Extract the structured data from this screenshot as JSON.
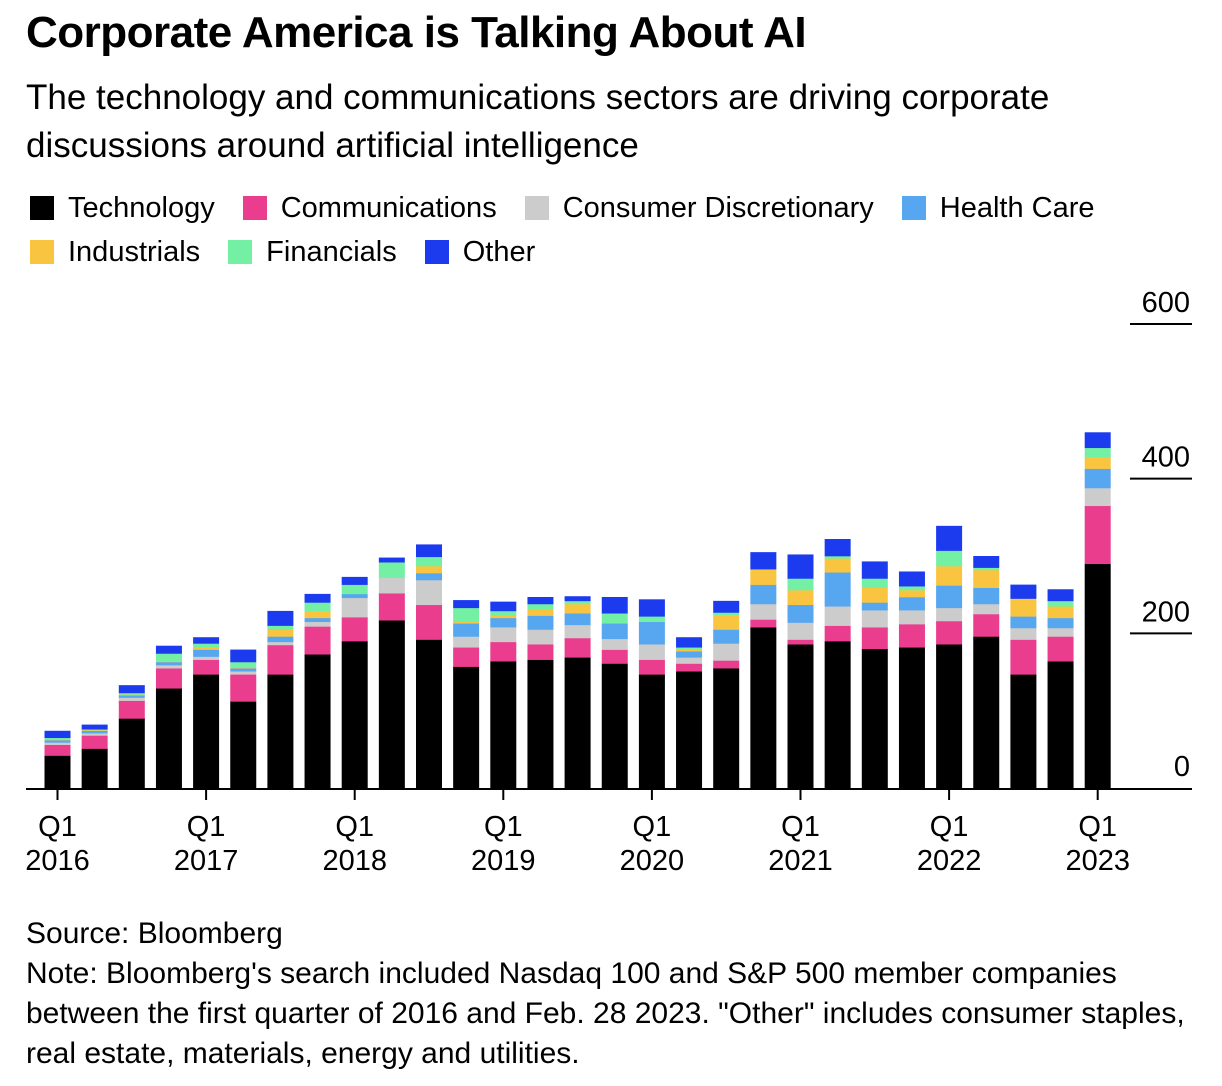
{
  "title": "Corporate America is Talking About AI",
  "subtitle": "The technology and communications sectors are driving corporate discussions around artificial intelligence",
  "source": "Source: Bloomberg",
  "note": "Note: Bloomberg's search included Nasdaq 100 and S&P 500 member companies between the first quarter of 2016 and Feb. 28 2023. \"Other\" includes consumer staples, real estate, materials, energy and utilities.",
  "chart_data": {
    "type": "bar",
    "stacked": true,
    "categories": [
      "Q1 2016",
      "Q2 2016",
      "Q3 2016",
      "Q4 2016",
      "Q1 2017",
      "Q2 2017",
      "Q3 2017",
      "Q4 2017",
      "Q1 2018",
      "Q2 2018",
      "Q3 2018",
      "Q4 2018",
      "Q1 2019",
      "Q2 2019",
      "Q3 2019",
      "Q4 2019",
      "Q1 2020",
      "Q2 2020",
      "Q3 2020",
      "Q4 2020",
      "Q1 2021",
      "Q2 2021",
      "Q3 2021",
      "Q4 2021",
      "Q1 2022",
      "Q2 2022",
      "Q3 2022",
      "Q4 2022",
      "Q1 2023"
    ],
    "x_ticks": [
      {
        "index": 0,
        "line1": "Q1",
        "line2": "2016"
      },
      {
        "index": 4,
        "line1": "Q1",
        "line2": "2017"
      },
      {
        "index": 8,
        "line1": "Q1",
        "line2": "2018"
      },
      {
        "index": 12,
        "line1": "Q1",
        "line2": "2019"
      },
      {
        "index": 16,
        "line1": "Q1",
        "line2": "2020"
      },
      {
        "index": 20,
        "line1": "Q1",
        "line2": "2021"
      },
      {
        "index": 24,
        "line1": "Q1",
        "line2": "2022"
      },
      {
        "index": 28,
        "line1": "Q1",
        "line2": "2023"
      }
    ],
    "y_ticks": [
      0,
      200,
      400,
      600
    ],
    "ylim": [
      0,
      600
    ],
    "legend_position": "top-left",
    "series": [
      {
        "name": "Technology",
        "color": "#000000",
        "values": [
          42,
          51,
          90,
          129,
          147,
          112,
          147,
          173,
          190,
          217,
          192,
          157,
          164,
          166,
          169,
          161,
          147,
          151,
          155,
          208,
          186,
          190,
          180,
          182,
          186,
          196,
          147,
          164,
          290
        ]
      },
      {
        "name": "Communications",
        "color": "#ea3d8e",
        "values": [
          14,
          17,
          23,
          26,
          19,
          35,
          38,
          36,
          31,
          35,
          45,
          25,
          25,
          20,
          25,
          18,
          19,
          10,
          10,
          10,
          6,
          20,
          28,
          30,
          30,
          29,
          45,
          32,
          75
        ]
      },
      {
        "name": "Consumer Discretionary",
        "color": "#cccccc",
        "values": [
          3,
          3,
          4,
          4,
          4,
          4,
          4,
          6,
          25,
          20,
          32,
          14,
          19,
          19,
          17,
          14,
          20,
          8,
          22,
          20,
          22,
          25,
          22,
          18,
          17,
          13,
          15,
          11,
          23
        ]
      },
      {
        "name": "Health Care",
        "color": "#57a6f0",
        "values": [
          3,
          3,
          3,
          4,
          9,
          4,
          7,
          5,
          5,
          0,
          9,
          17,
          12,
          18,
          15,
          20,
          29,
          8,
          18,
          25,
          23,
          44,
          10,
          17,
          29,
          21,
          15,
          13,
          25
        ]
      },
      {
        "name": "Industrials",
        "color": "#f9c540",
        "values": [
          1,
          1,
          1,
          1,
          3,
          1,
          9,
          9,
          0,
          0,
          9,
          2,
          3,
          8,
          12,
          0,
          0,
          2,
          19,
          20,
          19,
          18,
          19,
          9,
          25,
          23,
          23,
          15,
          15
        ]
      },
      {
        "name": "Financials",
        "color": "#73f0a3",
        "values": [
          2,
          1,
          2,
          10,
          5,
          7,
          5,
          11,
          12,
          20,
          12,
          18,
          6,
          7,
          4,
          13,
          7,
          3,
          3,
          0,
          15,
          3,
          12,
          5,
          20,
          3,
          0,
          7,
          12
        ]
      },
      {
        "name": "Other",
        "color": "#1c3bef",
        "values": [
          9,
          6,
          10,
          10,
          8,
          16,
          19,
          11,
          10,
          6,
          16,
          10,
          12,
          9,
          6,
          21,
          22,
          13,
          15,
          22,
          31,
          22,
          22,
          19,
          32,
          15,
          18,
          15,
          20
        ]
      }
    ]
  }
}
